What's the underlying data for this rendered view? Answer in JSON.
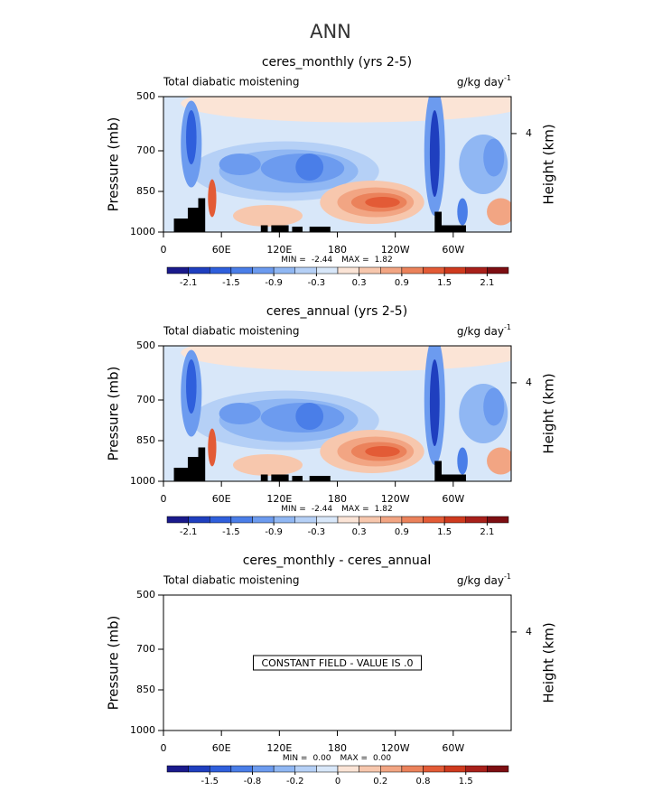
{
  "figure_title": "ANN",
  "chart_data": [
    {
      "type": "contour",
      "title": "ceres_monthly (yrs 2-5)",
      "left_label": "Total diabatic moistening",
      "units": "g/kg day",
      "units_exp": "-1",
      "ylabel": "Pressure (mb)",
      "y2label": "Height (km)",
      "xlim": [
        0,
        360
      ],
      "ylim": [
        1000,
        500
      ],
      "yticks": [
        500,
        700,
        850,
        1000
      ],
      "y2lim": [
        0,
        5.5
      ],
      "y2ticks": [
        4
      ],
      "xticks": [
        0,
        {
          "value": 60,
          "label": "60E"
        },
        {
          "value": 120,
          "label": "120E"
        },
        180,
        {
          "value": 240,
          "label": "120W"
        },
        {
          "value": 300,
          "label": "60W"
        }
      ],
      "min_label": "MIN =",
      "min": "-2.44",
      "max_label": "MAX =",
      "max": "1.82",
      "levels": [
        -2.1,
        null,
        -1.5,
        null,
        -0.9,
        null,
        -0.3,
        null,
        0.3,
        null,
        0.9,
        null,
        1.5,
        null,
        2.1
      ],
      "colors": [
        "#1a1a8c",
        "#1f3fbf",
        "#2f5fdc",
        "#4a7ee8",
        "#6c9bef",
        "#90b7f3",
        "#b5d0f6",
        "#d8e7f9",
        "#fbe4d6",
        "#f7c7ad",
        "#f2a583",
        "#eb825b",
        "#e35b36",
        "#cf3a1e",
        "#a8201a",
        "#7d0e12"
      ]
    },
    {
      "type": "contour",
      "title": "ceres_annual (yrs 2-5)",
      "left_label": "Total diabatic moistening",
      "units": "g/kg day",
      "units_exp": "-1",
      "ylabel": "Pressure (mb)",
      "y2label": "Height (km)",
      "xlim": [
        0,
        360
      ],
      "ylim": [
        1000,
        500
      ],
      "yticks": [
        500,
        700,
        850,
        1000
      ],
      "y2lim": [
        0,
        5.5
      ],
      "y2ticks": [
        4
      ],
      "xticks": [
        0,
        {
          "value": 60,
          "label": "60E"
        },
        {
          "value": 120,
          "label": "120E"
        },
        180,
        {
          "value": 240,
          "label": "120W"
        },
        {
          "value": 300,
          "label": "60W"
        }
      ],
      "min_label": "MIN =",
      "min": "-2.44",
      "max_label": "MAX =",
      "max": "1.82",
      "levels": [
        -2.1,
        null,
        -1.5,
        null,
        -0.9,
        null,
        -0.3,
        null,
        0.3,
        null,
        0.9,
        null,
        1.5,
        null,
        2.1
      ],
      "colors": [
        "#1a1a8c",
        "#1f3fbf",
        "#2f5fdc",
        "#4a7ee8",
        "#6c9bef",
        "#90b7f3",
        "#b5d0f6",
        "#d8e7f9",
        "#fbe4d6",
        "#f7c7ad",
        "#f2a583",
        "#eb825b",
        "#e35b36",
        "#cf3a1e",
        "#a8201a",
        "#7d0e12"
      ]
    },
    {
      "type": "constant",
      "title": "ceres_monthly - ceres_annual",
      "left_label": "Total diabatic moistening",
      "units": "g/kg day",
      "units_exp": "-1",
      "ylabel": "Pressure (mb)",
      "y2label": "Height (km)",
      "xlim": [
        0,
        360
      ],
      "ylim": [
        1000,
        500
      ],
      "yticks": [
        500,
        700,
        850,
        1000
      ],
      "y2lim": [
        0,
        5.5
      ],
      "y2ticks": [
        4
      ],
      "xticks": [
        0,
        {
          "value": 60,
          "label": "60E"
        },
        {
          "value": 120,
          "label": "120E"
        },
        180,
        {
          "value": 240,
          "label": "120W"
        },
        {
          "value": 300,
          "label": "60W"
        }
      ],
      "min_label": "MIN =",
      "min": "0.00",
      "max_label": "MAX =",
      "max": "0.00",
      "annotation": "CONSTANT FIELD - VALUE IS .0",
      "levels": [
        null,
        -1.5,
        null,
        -0.8,
        null,
        -0.2,
        null,
        0,
        null,
        0.2,
        null,
        0.8,
        null,
        1.5,
        null
      ],
      "colors": [
        "#1a1a8c",
        "#1f3fbf",
        "#2f5fdc",
        "#4a7ee8",
        "#6c9bef",
        "#90b7f3",
        "#b5d0f6",
        "#d8e7f9",
        "#fbe4d6",
        "#f7c7ad",
        "#f2a583",
        "#eb825b",
        "#e35b36",
        "#cf3a1e",
        "#a8201a",
        "#7d0e12"
      ]
    }
  ]
}
